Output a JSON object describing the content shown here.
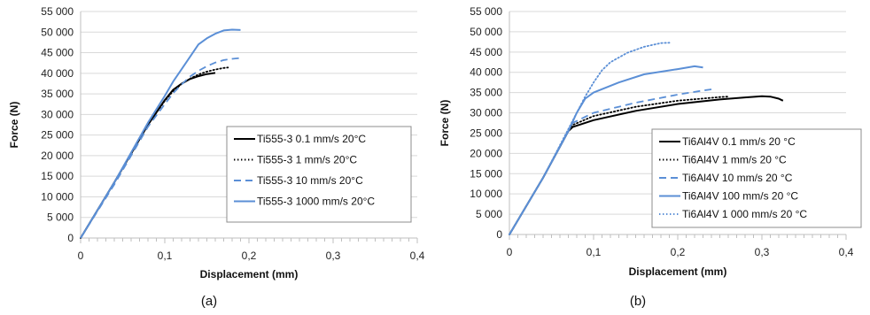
{
  "chart_data": [
    {
      "type": "line",
      "panel_label": "(a)",
      "xlabel": "Displacement (mm)",
      "ylabel": "Force (N)",
      "xlim": [
        0,
        0.4
      ],
      "ylim": [
        0,
        55000
      ],
      "x_ticks": [
        "0",
        "0,1",
        "0,2",
        "0,3",
        "0,4"
      ],
      "y_ticks": [
        "0",
        "5 000",
        "10 000",
        "15 000",
        "20 000",
        "25 000",
        "30 000",
        "35 000",
        "40 000",
        "45 000",
        "50 000",
        "55 000"
      ],
      "grid": "horizontal",
      "legend_position": "bottom-right",
      "series": [
        {
          "name": "Ti555-3 0.1 mm/s 20°C",
          "color": "#000000",
          "style": "solid",
          "points": [
            [
              0,
              0
            ],
            [
              0.04,
              13500
            ],
            [
              0.08,
              27500
            ],
            [
              0.1,
              33500
            ],
            [
              0.11,
              36000
            ],
            [
              0.12,
              37500
            ],
            [
              0.13,
              38600
            ],
            [
              0.14,
              39300
            ],
            [
              0.15,
              39800
            ],
            [
              0.16,
              40100
            ]
          ]
        },
        {
          "name": "Ti555-3 1 mm/s 20°C",
          "color": "#000000",
          "style": "dotted",
          "points": [
            [
              0,
              0
            ],
            [
              0.04,
              13500
            ],
            [
              0.08,
              27500
            ],
            [
              0.1,
              33300
            ],
            [
              0.11,
              35700
            ],
            [
              0.12,
              37400
            ],
            [
              0.13,
              38700
            ],
            [
              0.14,
              39700
            ],
            [
              0.15,
              40400
            ],
            [
              0.16,
              40900
            ],
            [
              0.17,
              41300
            ],
            [
              0.175,
              41400
            ]
          ]
        },
        {
          "name": "Ti555-3 10 mm/s 20°C",
          "color": "#5b8fd6",
          "style": "dashed",
          "points": [
            [
              0,
              0
            ],
            [
              0.04,
              13000
            ],
            [
              0.08,
              27000
            ],
            [
              0.1,
              32500
            ],
            [
              0.11,
              35200
            ],
            [
              0.12,
              37300
            ],
            [
              0.13,
              39200
            ],
            [
              0.14,
              40600
            ],
            [
              0.15,
              41700
            ],
            [
              0.16,
              42600
            ],
            [
              0.17,
              43200
            ],
            [
              0.18,
              43500
            ],
            [
              0.19,
              43700
            ]
          ]
        },
        {
          "name": "Ti555-3 1000 mm/s 20°C",
          "color": "#5b8fd6",
          "style": "solid",
          "points": [
            [
              0,
              0
            ],
            [
              0.04,
              13500
            ],
            [
              0.08,
              28000
            ],
            [
              0.1,
              34500
            ],
            [
              0.11,
              38000
            ],
            [
              0.12,
              41000
            ],
            [
              0.13,
              44000
            ],
            [
              0.14,
              47000
            ],
            [
              0.15,
              48500
            ],
            [
              0.16,
              49600
            ],
            [
              0.17,
              50400
            ],
            [
              0.18,
              50600
            ],
            [
              0.19,
              50500
            ]
          ]
        }
      ]
    },
    {
      "type": "line",
      "panel_label": "(b)",
      "xlabel": "Displacement (mm)",
      "ylabel": "Force (N)",
      "xlim": [
        0,
        0.4
      ],
      "ylim": [
        0,
        55000
      ],
      "x_ticks": [
        "0",
        "0,1",
        "0,2",
        "0,3",
        "0,4"
      ],
      "y_ticks": [
        "0",
        "5 000",
        "10 000",
        "15 000",
        "20 000",
        "25 000",
        "30 000",
        "35 000",
        "40 000",
        "45 000",
        "50 000",
        "55 000"
      ],
      "grid": "horizontal",
      "legend_position": "bottom-right",
      "series": [
        {
          "name": "Ti6Al4V 0.1 mm/s 20 °C",
          "color": "#000000",
          "style": "solid",
          "points": [
            [
              0,
              0
            ],
            [
              0.04,
              14000
            ],
            [
              0.07,
              25500
            ],
            [
              0.075,
              26500
            ],
            [
              0.1,
              28200
            ],
            [
              0.15,
              30500
            ],
            [
              0.2,
              32200
            ],
            [
              0.25,
              33300
            ],
            [
              0.28,
              33800
            ],
            [
              0.3,
              34100
            ],
            [
              0.31,
              34000
            ],
            [
              0.32,
              33500
            ],
            [
              0.325,
              33000
            ]
          ]
        },
        {
          "name": "Ti6Al4V 1 mm/s 20 °C",
          "color": "#000000",
          "style": "dotted",
          "points": [
            [
              0,
              0
            ],
            [
              0.04,
              14000
            ],
            [
              0.07,
              25500
            ],
            [
              0.075,
              27000
            ],
            [
              0.1,
              29200
            ],
            [
              0.15,
              31500
            ],
            [
              0.2,
              33000
            ],
            [
              0.25,
              33900
            ],
            [
              0.26,
              34000
            ]
          ]
        },
        {
          "name": "Ti6Al4V 10 mm/s 20 °C",
          "color": "#5b8fd6",
          "style": "dashed",
          "points": [
            [
              0,
              0
            ],
            [
              0.04,
              14000
            ],
            [
              0.07,
              25500
            ],
            [
              0.075,
              27500
            ],
            [
              0.1,
              30000
            ],
            [
              0.15,
              32500
            ],
            [
              0.2,
              34500
            ],
            [
              0.23,
              35500
            ],
            [
              0.24,
              35800
            ]
          ]
        },
        {
          "name": "Ti6Al4V 100 mm/s 20 °C",
          "color": "#5b8fd6",
          "style": "solid",
          "points": [
            [
              0,
              0
            ],
            [
              0.04,
              14000
            ],
            [
              0.07,
              25500
            ],
            [
              0.08,
              30000
            ],
            [
              0.09,
              33500
            ],
            [
              0.1,
              35000
            ],
            [
              0.13,
              37500
            ],
            [
              0.16,
              39500
            ],
            [
              0.2,
              40800
            ],
            [
              0.22,
              41500
            ],
            [
              0.23,
              41200
            ]
          ]
        },
        {
          "name": "Ti6Al4V 1 000 mm/s 20 °C",
          "color": "#5b8fd6",
          "style": "dotted",
          "points": [
            [
              0,
              0
            ],
            [
              0.04,
              14000
            ],
            [
              0.07,
              26000
            ],
            [
              0.08,
              30000
            ],
            [
              0.09,
              34000
            ],
            [
              0.1,
              37500
            ],
            [
              0.11,
              40500
            ],
            [
              0.12,
              42500
            ],
            [
              0.14,
              44800
            ],
            [
              0.16,
              46300
            ],
            [
              0.18,
              47200
            ],
            [
              0.19,
              47300
            ]
          ]
        }
      ]
    }
  ]
}
